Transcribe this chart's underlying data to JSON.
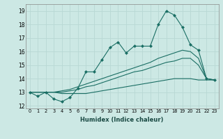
{
  "xlabel": "Humidex (Indice chaleur)",
  "ylabel": "",
  "background_color": "#cce8e4",
  "grid_color": "#b8d8d4",
  "line_color": "#1a6e64",
  "xlim": [
    -0.5,
    23.5
  ],
  "ylim": [
    11.8,
    19.5
  ],
  "xticks": [
    0,
    1,
    2,
    3,
    4,
    5,
    6,
    7,
    8,
    9,
    10,
    11,
    12,
    13,
    14,
    15,
    16,
    17,
    18,
    19,
    20,
    21,
    22,
    23
  ],
  "yticks": [
    12,
    13,
    14,
    15,
    16,
    17,
    18,
    19
  ],
  "series": [
    [
      13.0,
      12.7,
      13.0,
      12.5,
      12.3,
      12.6,
      13.3,
      14.5,
      14.5,
      15.4,
      16.3,
      16.7,
      15.9,
      16.4,
      16.4,
      16.4,
      18.0,
      19.0,
      18.7,
      17.8,
      16.5,
      16.1,
      14.0,
      13.9
    ],
    [
      13.0,
      13.0,
      13.0,
      13.0,
      13.1,
      13.2,
      13.4,
      13.6,
      13.8,
      14.0,
      14.2,
      14.4,
      14.6,
      14.8,
      15.0,
      15.2,
      15.5,
      15.7,
      15.9,
      16.1,
      16.0,
      15.5,
      14.0,
      13.9
    ],
    [
      13.0,
      13.0,
      13.0,
      13.0,
      13.0,
      13.1,
      13.2,
      13.4,
      13.5,
      13.7,
      13.9,
      14.1,
      14.3,
      14.5,
      14.6,
      14.8,
      15.0,
      15.2,
      15.3,
      15.5,
      15.5,
      15.0,
      14.0,
      13.9
    ],
    [
      13.0,
      13.0,
      13.0,
      13.0,
      12.9,
      12.9,
      12.9,
      12.9,
      13.0,
      13.1,
      13.2,
      13.3,
      13.4,
      13.5,
      13.6,
      13.7,
      13.8,
      13.9,
      14.0,
      14.0,
      14.0,
      13.9,
      13.9,
      13.9
    ]
  ]
}
